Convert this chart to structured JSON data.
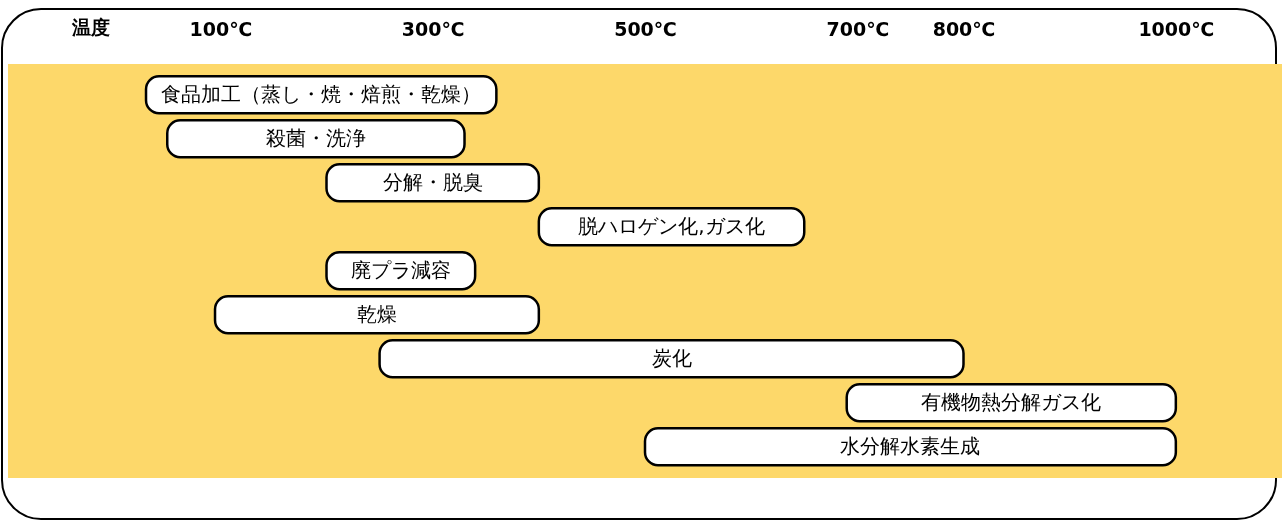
{
  "chart_data": {
    "type": "bar",
    "orientation": "horizontal",
    "xlabel": "温度",
    "categories": [
      "食品加工（蒸し・焼・焙煎・乾燥）",
      "殺菌・洗浄",
      "分解・脱臭",
      "脱ハロゲン化,ガス化",
      "廃プラ減容",
      "乾燥",
      "炭化",
      "有機物熱分解ガス化",
      "水分解水素生成"
    ],
    "base": [
      30,
      50,
      200,
      400,
      200,
      95,
      250,
      690,
      500
    ],
    "values": [
      330,
      280,
      200,
      250,
      140,
      305,
      550,
      310,
      500
    ],
    "color": "#ffffff",
    "xlim": [
      -100,
      1100
    ],
    "xticks": [
      {
        "value": 100,
        "label": "100℃"
      },
      {
        "value": 300,
        "label": "300℃"
      },
      {
        "value": 500,
        "label": "500℃"
      },
      {
        "value": 700,
        "label": "700℃"
      },
      {
        "value": 800,
        "label": "800℃"
      },
      {
        "value": 1000,
        "label": "1000℃"
      }
    ],
    "grid": false
  }
}
